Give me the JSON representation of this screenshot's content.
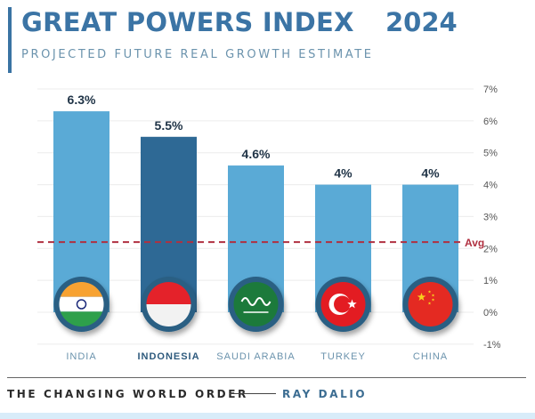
{
  "header": {
    "title": "GREAT POWERS INDEX",
    "year": "2024",
    "subtitle": "PROJECTED FUTURE REAL GROWTH ESTIMATE"
  },
  "footer": {
    "left": "THE CHANGING WORLD ORDER",
    "right": "RAY DALIO"
  },
  "colors": {
    "bar": "#5aaad6",
    "bar_highlight": "#2e6995",
    "avg_line": "#b03040",
    "title": "#3b74a5"
  },
  "chart_data": {
    "type": "bar",
    "title": "GREAT POWERS INDEX 2024",
    "subtitle": "PROJECTED FUTURE REAL GROWTH ESTIMATE",
    "categories": [
      "INDIA",
      "INDONESIA",
      "SAUDI ARABIA",
      "TURKEY",
      "CHINA"
    ],
    "values": [
      6.3,
      5.5,
      4.6,
      4,
      4
    ],
    "data_labels": [
      "6.3%",
      "5.5%",
      "4.6%",
      "4%",
      "4%"
    ],
    "highlighted": "INDONESIA",
    "flags": [
      "india-flag",
      "indonesia-flag",
      "saudi-arabia-flag",
      "turkey-flag",
      "china-flag"
    ],
    "ylim": [
      -1,
      7
    ],
    "yticks": [
      7,
      6,
      5,
      4,
      3,
      2,
      1,
      0,
      -1
    ],
    "ytick_labels": [
      "7%",
      "6%",
      "5%",
      "4%",
      "3%",
      "2%",
      "1%",
      "0%",
      "-1%"
    ],
    "yaxis_position": "right",
    "grid": true,
    "average": {
      "label": "Avg",
      "value": 2.2
    },
    "xlabel": "",
    "ylabel": ""
  }
}
